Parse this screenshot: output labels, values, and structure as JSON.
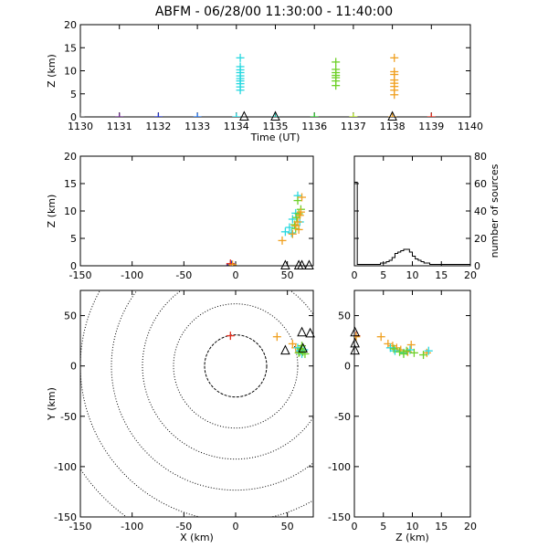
{
  "title": "ABFM - 06/28/00 11:30:00 - 11:40:00",
  "chart_data": [
    {
      "id": "time_height",
      "type": "scatter",
      "xlabel": "Time (UT)",
      "ylabel": "Z (km)",
      "xlim": [
        1130,
        1140
      ],
      "ylim": [
        0,
        20
      ],
      "xticks": [
        "1130",
        "1131",
        "1132",
        "1133",
        "1134",
        "1135",
        "1136",
        "1137",
        "1138",
        "1139",
        "1140"
      ],
      "yticks": [
        "0",
        "5",
        "10",
        "15",
        "20"
      ],
      "points": [
        {
          "x": 1130.0,
          "y": 0.0,
          "color": "#6b6b6b"
        },
        {
          "x": 1131.0,
          "y": 0.0,
          "color": "#6b2a8a"
        },
        {
          "x": 1132.0,
          "y": 0.0,
          "color": "#1e2fc8"
        },
        {
          "x": 1133.0,
          "y": 0.0,
          "color": "#1e6fe8"
        },
        {
          "x": 1134.0,
          "y": 0.0,
          "color": "#28d8e0"
        },
        {
          "x": 1134.1,
          "y": 5.8,
          "color": "#28d8e0"
        },
        {
          "x": 1134.1,
          "y": 6.5,
          "color": "#28d8e0"
        },
        {
          "x": 1134.1,
          "y": 7.2,
          "color": "#28d8e0"
        },
        {
          "x": 1134.1,
          "y": 7.8,
          "color": "#28d8e0"
        },
        {
          "x": 1134.1,
          "y": 8.3,
          "color": "#28d8e0"
        },
        {
          "x": 1134.1,
          "y": 8.9,
          "color": "#28d8e0"
        },
        {
          "x": 1134.1,
          "y": 9.6,
          "color": "#28d8e0"
        },
        {
          "x": 1134.1,
          "y": 10.2,
          "color": "#28d8e0"
        },
        {
          "x": 1134.1,
          "y": 10.9,
          "color": "#28d8e0"
        },
        {
          "x": 1134.1,
          "y": 12.8,
          "color": "#28d8e0"
        },
        {
          "x": 1135.0,
          "y": 0.0,
          "color": "#20b0a0"
        },
        {
          "x": 1136.0,
          "y": 0.0,
          "color": "#30c830"
        },
        {
          "x": 1136.55,
          "y": 6.8,
          "color": "#6ed028"
        },
        {
          "x": 1136.55,
          "y": 7.8,
          "color": "#6ed028"
        },
        {
          "x": 1136.55,
          "y": 8.5,
          "color": "#6ed028"
        },
        {
          "x": 1136.55,
          "y": 9.0,
          "color": "#6ed028"
        },
        {
          "x": 1136.55,
          "y": 9.6,
          "color": "#6ed028"
        },
        {
          "x": 1136.55,
          "y": 10.3,
          "color": "#6ed028"
        },
        {
          "x": 1136.55,
          "y": 11.9,
          "color": "#6ed028"
        },
        {
          "x": 1137.0,
          "y": 0.0,
          "color": "#b0e020"
        },
        {
          "x": 1138.0,
          "y": 0.0,
          "color": "#f0a020"
        },
        {
          "x": 1138.05,
          "y": 4.8,
          "color": "#f0a020"
        },
        {
          "x": 1138.05,
          "y": 5.8,
          "color": "#f0a020"
        },
        {
          "x": 1138.05,
          "y": 6.6,
          "color": "#f0a020"
        },
        {
          "x": 1138.05,
          "y": 7.3,
          "color": "#f0a020"
        },
        {
          "x": 1138.05,
          "y": 8.0,
          "color": "#f0a020"
        },
        {
          "x": 1138.05,
          "y": 9.2,
          "color": "#f0a020"
        },
        {
          "x": 1138.05,
          "y": 9.8,
          "color": "#f0a020"
        },
        {
          "x": 1138.05,
          "y": 12.8,
          "color": "#f0a020"
        },
        {
          "x": 1139.0,
          "y": 0.0,
          "color": "#e03020"
        }
      ],
      "stations": [
        {
          "x": 1134.2,
          "y": 0
        },
        {
          "x": 1135.0,
          "y": 0
        },
        {
          "x": 1138.0,
          "y": 0
        }
      ]
    },
    {
      "id": "x_height",
      "type": "scatter",
      "xlabel": "",
      "ylabel": "Z (km)",
      "xlim": [
        -150,
        75
      ],
      "ylim": [
        0,
        20
      ],
      "xticks": [
        "-150",
        "-100",
        "-50",
        "0",
        "50"
      ],
      "yticks": [
        "0",
        "5",
        "10",
        "15",
        "20"
      ],
      "points": [
        {
          "x": -5,
          "y": 0.2,
          "color": "#6b2a8a"
        },
        {
          "x": -4,
          "y": 0.2,
          "color": "#1e2fc8"
        },
        {
          "x": -5,
          "y": 0.4,
          "color": "#e03020"
        },
        {
          "x": -3,
          "y": 0.2,
          "color": "#f0a020"
        },
        {
          "x": 48,
          "y": 6.2,
          "color": "#28d8e0"
        },
        {
          "x": 52,
          "y": 7.0,
          "color": "#28d8e0"
        },
        {
          "x": 55,
          "y": 8.5,
          "color": "#28d8e0"
        },
        {
          "x": 58,
          "y": 9.6,
          "color": "#28d8e0"
        },
        {
          "x": 60,
          "y": 12.8,
          "color": "#28d8e0"
        },
        {
          "x": 62,
          "y": 8.0,
          "color": "#28d8e0"
        },
        {
          "x": 54,
          "y": 6.0,
          "color": "#28d8e0"
        },
        {
          "x": 57,
          "y": 7.5,
          "color": "#6ed028"
        },
        {
          "x": 59,
          "y": 8.8,
          "color": "#6ed028"
        },
        {
          "x": 61,
          "y": 9.5,
          "color": "#6ed028"
        },
        {
          "x": 63,
          "y": 10.3,
          "color": "#6ed028"
        },
        {
          "x": 60,
          "y": 11.9,
          "color": "#6ed028"
        },
        {
          "x": 58,
          "y": 6.8,
          "color": "#6ed028"
        },
        {
          "x": 45,
          "y": 4.6,
          "color": "#f0a020"
        },
        {
          "x": 55,
          "y": 5.8,
          "color": "#f0a020"
        },
        {
          "x": 58,
          "y": 7.3,
          "color": "#f0a020"
        },
        {
          "x": 60,
          "y": 8.0,
          "color": "#f0a020"
        },
        {
          "x": 62,
          "y": 9.2,
          "color": "#f0a020"
        },
        {
          "x": 64,
          "y": 12.5,
          "color": "#f0a020"
        },
        {
          "x": 61,
          "y": 6.6,
          "color": "#f0a020"
        },
        {
          "x": 63,
          "y": 9.8,
          "color": "#f0a020"
        }
      ],
      "stations": [
        {
          "x": 48,
          "y": 0
        },
        {
          "x": 61,
          "y": 0
        },
        {
          "x": 64,
          "y": 0
        },
        {
          "x": 71,
          "y": 0
        }
      ]
    },
    {
      "id": "height_histogram",
      "type": "bar",
      "xlabel": "",
      "ylabel": "number of sources",
      "xlim": [
        0,
        20
      ],
      "ylim": [
        0,
        80
      ],
      "xticks": [
        "0",
        "5",
        "10",
        "15",
        "20"
      ],
      "yticks": [
        "0",
        "20",
        "40",
        "60",
        "80"
      ],
      "bin_edges": [
        0,
        0.5,
        1,
        1.5,
        2,
        2.5,
        3,
        3.5,
        4,
        4.5,
        5,
        5.5,
        6,
        6.5,
        7,
        7.5,
        8,
        8.5,
        9,
        9.5,
        10,
        10.5,
        11,
        11.5,
        12,
        12.5,
        13,
        13.5,
        14,
        14.5,
        15,
        15.5,
        16,
        16.5,
        17,
        17.5,
        18,
        18.5,
        19,
        19.5,
        20
      ],
      "counts": [
        61,
        1,
        1,
        1,
        1,
        1,
        1,
        1,
        1,
        2,
        2,
        3,
        4,
        6,
        9,
        10,
        11,
        12,
        12,
        10,
        7,
        5,
        4,
        3,
        2,
        2,
        1,
        1,
        1,
        1,
        1,
        1,
        1,
        1,
        1,
        1,
        1,
        1,
        1,
        1
      ]
    },
    {
      "id": "plan_view",
      "type": "scatter",
      "xlabel": "X (km)",
      "ylabel": "Y (km)",
      "xlim": [
        -150,
        75
      ],
      "ylim": [
        -150,
        75
      ],
      "xticks": [
        "-150",
        "-100",
        "-50",
        "0",
        "50"
      ],
      "yticks": [
        "-150",
        "-100",
        "-50",
        "0",
        "50"
      ],
      "range_rings_km": [
        30,
        60,
        90,
        120,
        150,
        180
      ],
      "points": [
        {
          "x": -5,
          "y": 30,
          "color": "#e03020"
        },
        {
          "x": 40,
          "y": 29,
          "color": "#f0a020"
        },
        {
          "x": 55,
          "y": 22,
          "color": "#f0a020"
        },
        {
          "x": 58,
          "y": 18,
          "color": "#f0a020"
        },
        {
          "x": 62,
          "y": 14,
          "color": "#f0a020"
        },
        {
          "x": 60,
          "y": 18,
          "color": "#28d8e0"
        },
        {
          "x": 62,
          "y": 15,
          "color": "#28d8e0"
        },
        {
          "x": 64,
          "y": 12,
          "color": "#28d8e0"
        },
        {
          "x": 66,
          "y": 16,
          "color": "#28d8e0"
        },
        {
          "x": 61,
          "y": 13,
          "color": "#6ed028"
        },
        {
          "x": 63,
          "y": 17,
          "color": "#6ed028"
        },
        {
          "x": 65,
          "y": 14,
          "color": "#6ed028"
        },
        {
          "x": 67,
          "y": 12,
          "color": "#6ed028"
        },
        {
          "x": 64,
          "y": 20,
          "color": "#6ed028"
        }
      ],
      "stations": [
        {
          "x": 48,
          "y": 15
        },
        {
          "x": 64,
          "y": 33
        },
        {
          "x": 72,
          "y": 32
        },
        {
          "x": 65,
          "y": 17
        }
      ]
    },
    {
      "id": "z_y_view",
      "type": "scatter",
      "xlabel": "Z (km)",
      "ylabel": "",
      "xlim": [
        0,
        20
      ],
      "ylim": [
        -150,
        75
      ],
      "xticks": [
        "0",
        "5",
        "10",
        "15",
        "20"
      ],
      "yticks": [
        "-150",
        "-100",
        "-50",
        "0",
        "50"
      ],
      "points": [
        {
          "x": 0.3,
          "y": 30,
          "color": "#e03020"
        },
        {
          "x": 0.3,
          "y": 29,
          "color": "#f0a020"
        },
        {
          "x": 4.6,
          "y": 29,
          "color": "#f0a020"
        },
        {
          "x": 5.8,
          "y": 22,
          "color": "#f0a020"
        },
        {
          "x": 6.6,
          "y": 20,
          "color": "#f0a020"
        },
        {
          "x": 7.3,
          "y": 18,
          "color": "#f0a020"
        },
        {
          "x": 8.0,
          "y": 16,
          "color": "#f0a020"
        },
        {
          "x": 9.2,
          "y": 14,
          "color": "#f0a020"
        },
        {
          "x": 9.8,
          "y": 21,
          "color": "#f0a020"
        },
        {
          "x": 12.5,
          "y": 13,
          "color": "#f0a020"
        },
        {
          "x": 6.2,
          "y": 18,
          "color": "#28d8e0"
        },
        {
          "x": 7.0,
          "y": 15,
          "color": "#28d8e0"
        },
        {
          "x": 8.5,
          "y": 13,
          "color": "#28d8e0"
        },
        {
          "x": 9.6,
          "y": 16,
          "color": "#28d8e0"
        },
        {
          "x": 12.8,
          "y": 15,
          "color": "#28d8e0"
        },
        {
          "x": 6.8,
          "y": 17,
          "color": "#6ed028"
        },
        {
          "x": 7.8,
          "y": 14,
          "color": "#6ed028"
        },
        {
          "x": 8.5,
          "y": 12,
          "color": "#6ed028"
        },
        {
          "x": 9.0,
          "y": 15,
          "color": "#6ed028"
        },
        {
          "x": 10.3,
          "y": 13,
          "color": "#6ed028"
        },
        {
          "x": 11.9,
          "y": 11,
          "color": "#6ed028"
        }
      ],
      "stations": [
        {
          "x": 0.1,
          "y": 33
        },
        {
          "x": 0.1,
          "y": 22
        },
        {
          "x": 0.1,
          "y": 15
        }
      ]
    }
  ]
}
